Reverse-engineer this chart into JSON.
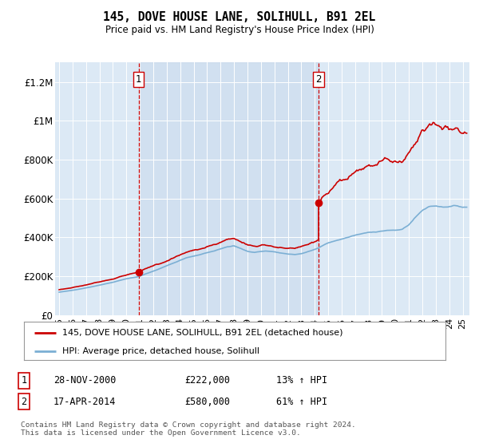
{
  "title": "145, DOVE HOUSE LANE, SOLIHULL, B91 2EL",
  "subtitle": "Price paid vs. HM Land Registry's House Price Index (HPI)",
  "plot_bg_color": "#dce9f5",
  "ylabel_ticks": [
    "£0",
    "£200K",
    "£400K",
    "£600K",
    "£800K",
    "£1M",
    "£1.2M"
  ],
  "ytick_values": [
    0,
    200000,
    400000,
    600000,
    800000,
    1000000,
    1200000
  ],
  "ylim": [
    0,
    1300000
  ],
  "xlim_start": 1994.7,
  "xlim_end": 2025.5,
  "purchase1_x": 2000.91,
  "purchase1_y": 222000,
  "purchase2_x": 2014.29,
  "purchase2_y": 580000,
  "legend_line1": "145, DOVE HOUSE LANE, SOLIHULL, B91 2EL (detached house)",
  "legend_line2": "HPI: Average price, detached house, Solihull",
  "table_row1": [
    "1",
    "28-NOV-2000",
    "£222,000",
    "13% ↑ HPI"
  ],
  "table_row2": [
    "2",
    "17-APR-2014",
    "£580,000",
    "61% ↑ HPI"
  ],
  "footer": "Contains HM Land Registry data © Crown copyright and database right 2024.\nThis data is licensed under the Open Government Licence v3.0.",
  "hpi_color": "#7bafd4",
  "price_color": "#cc0000",
  "dashed_color": "#cc0000",
  "shade_color": "#c8d8ec"
}
